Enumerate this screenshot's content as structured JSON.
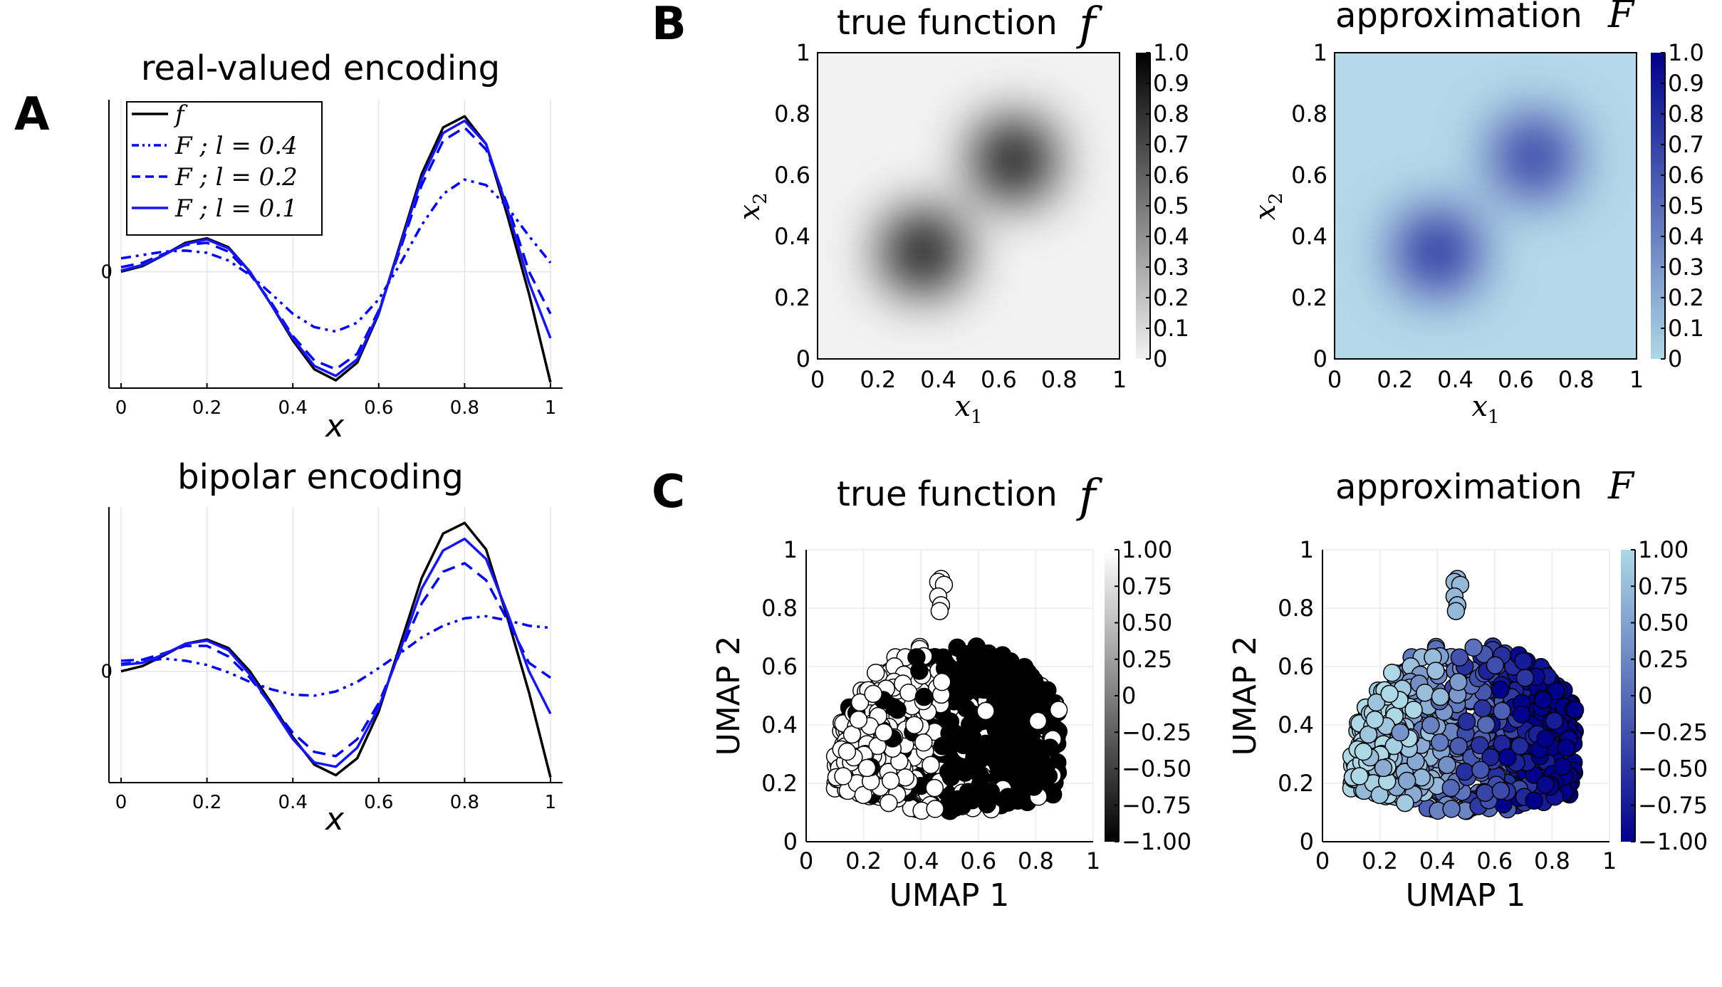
{
  "panel_labels": {
    "a": "A",
    "b": "B",
    "c": "C"
  },
  "chart_data": [
    {
      "id": "A-top",
      "type": "line",
      "title": "real-valued encoding",
      "xlabel": "x",
      "xticks": [
        "0",
        "0.2",
        "0.4",
        "0.6",
        "0.8",
        "1"
      ],
      "yticks": [
        "0"
      ],
      "xlim": [
        0,
        1
      ],
      "ylim": [
        -1.05,
        1.55
      ],
      "legend_position": "top-left",
      "x": [
        0,
        0.05,
        0.1,
        0.15,
        0.2,
        0.25,
        0.3,
        0.35,
        0.4,
        0.45,
        0.5,
        0.55,
        0.6,
        0.65,
        0.7,
        0.75,
        0.8,
        0.85,
        0.9,
        0.95,
        1.0
      ],
      "series": [
        {
          "name": "f",
          "style": "solid",
          "color": "#000000",
          "values": [
            0,
            0.05,
            0.15,
            0.26,
            0.3,
            0.22,
            0.0,
            -0.3,
            -0.62,
            -0.88,
            -0.98,
            -0.82,
            -0.38,
            0.25,
            0.88,
            1.3,
            1.4,
            1.15,
            0.5,
            -0.2,
            -1.0
          ]
        },
        {
          "name": "F ; l = 0.4",
          "style": "dashdot",
          "color": "#0000ff",
          "values": [
            0.12,
            0.15,
            0.18,
            0.19,
            0.17,
            0.1,
            -0.03,
            -0.2,
            -0.38,
            -0.5,
            -0.54,
            -0.46,
            -0.25,
            0.07,
            0.42,
            0.7,
            0.83,
            0.78,
            0.58,
            0.32,
            0.08
          ]
        },
        {
          "name": "F ; l = 0.2",
          "style": "dashed",
          "color": "#0000ff",
          "values": [
            0.04,
            0.08,
            0.16,
            0.24,
            0.26,
            0.18,
            -0.02,
            -0.28,
            -0.58,
            -0.8,
            -0.88,
            -0.74,
            -0.35,
            0.2,
            0.78,
            1.18,
            1.3,
            1.1,
            0.6,
            0.0,
            -0.38
          ]
        },
        {
          "name": "F ; l = 0.1",
          "style": "solid",
          "color": "#1414ff",
          "values": [
            0.01,
            0.06,
            0.15,
            0.25,
            0.29,
            0.21,
            0.0,
            -0.3,
            -0.6,
            -0.85,
            -0.94,
            -0.79,
            -0.37,
            0.23,
            0.84,
            1.25,
            1.36,
            1.15,
            0.56,
            -0.1,
            -0.6
          ]
        }
      ],
      "legend": [
        "f",
        "F ; l = 0.4",
        "F ; l = 0.2",
        "F ; l = 0.1"
      ]
    },
    {
      "id": "A-bottom",
      "type": "line",
      "title": "bipolar encoding",
      "xlabel": "x",
      "xticks": [
        "0",
        "0.2",
        "0.4",
        "0.6",
        "0.8",
        "1"
      ],
      "yticks": [
        "0"
      ],
      "xlim": [
        0,
        1
      ],
      "ylim": [
        -1.05,
        1.55
      ],
      "x": [
        0,
        0.05,
        0.1,
        0.15,
        0.2,
        0.25,
        0.3,
        0.35,
        0.4,
        0.45,
        0.5,
        0.55,
        0.6,
        0.65,
        0.7,
        0.75,
        0.8,
        0.85,
        0.9,
        0.95,
        1.0
      ],
      "series": [
        {
          "name": "f",
          "style": "solid",
          "color": "#000000",
          "values": [
            0,
            0.05,
            0.15,
            0.26,
            0.3,
            0.22,
            0.0,
            -0.3,
            -0.62,
            -0.88,
            -0.98,
            -0.82,
            -0.38,
            0.25,
            0.88,
            1.3,
            1.4,
            1.15,
            0.5,
            -0.2,
            -1.0
          ]
        },
        {
          "name": "F ; l = 0.4",
          "style": "dashdot",
          "color": "#0000ff",
          "values": [
            0.07,
            0.09,
            0.12,
            0.1,
            0.06,
            -0.01,
            -0.1,
            -0.17,
            -0.22,
            -0.23,
            -0.19,
            -0.1,
            0.03,
            0.17,
            0.32,
            0.43,
            0.5,
            0.52,
            0.48,
            0.43,
            0.41
          ]
        },
        {
          "name": "F ; l = 0.2",
          "style": "dashed",
          "color": "#0000ff",
          "values": [
            0.1,
            0.11,
            0.17,
            0.24,
            0.24,
            0.14,
            -0.06,
            -0.32,
            -0.58,
            -0.76,
            -0.8,
            -0.64,
            -0.3,
            0.18,
            0.64,
            0.94,
            1.02,
            0.86,
            0.48,
            0.08,
            -0.06
          ]
        },
        {
          "name": "F ; l = 0.1",
          "style": "solid",
          "color": "#1414ff",
          "values": [
            0.06,
            0.08,
            0.16,
            0.26,
            0.29,
            0.2,
            -0.03,
            -0.33,
            -0.64,
            -0.86,
            -0.9,
            -0.72,
            -0.34,
            0.2,
            0.78,
            1.14,
            1.25,
            1.06,
            0.55,
            0.0,
            -0.4
          ]
        }
      ]
    },
    {
      "id": "B-left",
      "type": "heatmap",
      "title": "true function",
      "title_symbol": "f",
      "xlabel": "x1",
      "ylabel": "x2",
      "xticks": [
        "0",
        "0.2",
        "0.4",
        "0.6",
        "0.8",
        "1"
      ],
      "yticks": [
        "0",
        "0.2",
        "0.4",
        "0.6",
        "0.8",
        "1"
      ],
      "colorbar_ticks": [
        "0",
        "0.1",
        "0.2",
        "0.3",
        "0.4",
        "0.5",
        "0.6",
        "0.7",
        "0.8",
        "0.9",
        "1.0"
      ],
      "colormap": [
        "#f2f2f2",
        "#000000"
      ],
      "peaks": [
        {
          "x": 0.35,
          "y": 0.35,
          "value": 0.98,
          "width": 0.1
        },
        {
          "x": 0.65,
          "y": 0.65,
          "value": 0.98,
          "width": 0.1
        }
      ],
      "baseline": 0.03
    },
    {
      "id": "B-right",
      "type": "heatmap",
      "title": "approximation",
      "title_symbol": "F",
      "xlabel": "x1",
      "ylabel": "x2",
      "xticks": [
        "0",
        "0.2",
        "0.4",
        "0.6",
        "0.8",
        "1"
      ],
      "yticks": [
        "0",
        "0.2",
        "0.4",
        "0.6",
        "0.8",
        "1"
      ],
      "colorbar_ticks": [
        "0",
        "0.1",
        "0.2",
        "0.3",
        "0.4",
        "0.5",
        "0.6",
        "0.7",
        "0.8",
        "0.9",
        "1.0"
      ],
      "colormap": [
        "#add8e6",
        "#00008b"
      ],
      "peaks": [
        {
          "x": 0.34,
          "y": 0.35,
          "value": 0.85,
          "width": 0.1
        },
        {
          "x": 0.66,
          "y": 0.66,
          "value": 0.78,
          "width": 0.1
        }
      ],
      "baseline": 0.05
    },
    {
      "id": "C-left",
      "type": "scatter",
      "title": "true function",
      "title_symbol": "f",
      "xlabel": "UMAP 1",
      "ylabel": "UMAP 2",
      "xticks": [
        "0",
        "0.2",
        "0.4",
        "0.6",
        "0.8",
        "1"
      ],
      "yticks": [
        "0",
        "0.2",
        "0.4",
        "0.6",
        "0.8",
        "1"
      ],
      "colorbar_ticks": [
        "1.00",
        "0.75",
        "0.50",
        "0.25",
        "0",
        "−0.25",
        "−0.50",
        "−0.75",
        "−1.00"
      ],
      "colormap": [
        "#000000",
        "#ffffff"
      ],
      "point_cloud": {
        "x_range": [
          0.08,
          0.9
        ],
        "y_range": [
          0.1,
          0.7
        ],
        "outlier_cluster": {
          "x": 0.47,
          "y": 0.85
        },
        "n_points": 700,
        "value_rule": "x > 0.47 mostly -1 (black), x < 0.47 mostly +1 (white)"
      }
    },
    {
      "id": "C-right",
      "type": "scatter",
      "title": "approximation",
      "title_symbol": "F",
      "xlabel": "UMAP 1",
      "ylabel": "UMAP 2",
      "xticks": [
        "0",
        "0.2",
        "0.4",
        "0.6",
        "0.8",
        "1"
      ],
      "yticks": [
        "0",
        "0.2",
        "0.4",
        "0.6",
        "0.8",
        "1"
      ],
      "colorbar_ticks": [
        "1.00",
        "0.75",
        "0.50",
        "0.25",
        "0",
        "−0.25",
        "−0.50",
        "−0.75",
        "−1.00"
      ],
      "colormap": [
        "#00008b",
        "#add8e6"
      ],
      "point_cloud": {
        "x_range": [
          0.08,
          0.9
        ],
        "y_range": [
          0.1,
          0.7
        ],
        "outlier_cluster": {
          "x": 0.47,
          "y": 0.85
        },
        "n_points": 700,
        "value_rule": "smooth gradient from light (left) to dark blue (right)"
      }
    }
  ]
}
